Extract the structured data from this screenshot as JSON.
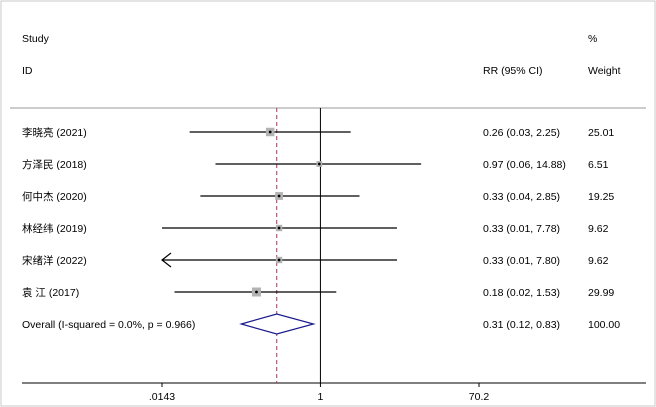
{
  "header": {
    "study_label": "Study",
    "id_label": "ID",
    "effect_label": "RR (95% CI)",
    "percent_label": "%",
    "weight_label": "Weight"
  },
  "chart_data": {
    "type": "forest",
    "scale": "log",
    "xlim": [
      0.0143,
      70.2
    ],
    "x_ticks": [
      {
        "value": 0.0143,
        "label": ".0143"
      },
      {
        "value": 1,
        "label": "1"
      },
      {
        "value": 70.2,
        "label": "70.2"
      }
    ],
    "null_line": 1,
    "pooled_reference_line": 0.31,
    "studies": [
      {
        "label": "李晓亮 (2021)",
        "rr": 0.26,
        "lo": 0.03,
        "hi": 2.25,
        "ci_text": "0.26 (0.03, 2.25)",
        "weight": "25.01",
        "weight_value": 25.01,
        "arrow_left": false
      },
      {
        "label": "方泽民 (2018)",
        "rr": 0.97,
        "lo": 0.06,
        "hi": 14.88,
        "ci_text": "0.97 (0.06, 14.88)",
        "weight": "6.51",
        "weight_value": 6.51,
        "arrow_left": false
      },
      {
        "label": "何中杰 (2020)",
        "rr": 0.33,
        "lo": 0.04,
        "hi": 2.85,
        "ci_text": "0.33 (0.04, 2.85)",
        "weight": "19.25",
        "weight_value": 19.25,
        "arrow_left": false
      },
      {
        "label": "林经纬 (2019)",
        "rr": 0.33,
        "lo": 0.01,
        "hi": 7.78,
        "ci_text": "0.33 (0.01, 7.78)",
        "weight": "9.62",
        "weight_value": 9.62,
        "arrow_left": false
      },
      {
        "label": "宋绪洋 (2022)",
        "rr": 0.33,
        "lo": 0.01,
        "hi": 7.8,
        "ci_text": "0.33 (0.01, 7.80)",
        "weight": "9.62",
        "weight_value": 9.62,
        "arrow_left": true
      },
      {
        "label": "袁 江 (2017)",
        "rr": 0.18,
        "lo": 0.02,
        "hi": 1.53,
        "ci_text": "0.18 (0.02, 1.53)",
        "weight": "29.99",
        "weight_value": 29.99,
        "arrow_left": false
      }
    ],
    "overall": {
      "label": "Overall  (I-squared = 0.0%, p = 0.966)",
      "rr": 0.31,
      "lo": 0.12,
      "hi": 0.83,
      "ci_text": "0.31 (0.12, 0.83)",
      "weight": "100.00"
    },
    "colors": {
      "diamond": "#1a1a8c",
      "box": "#b3b3b3",
      "reference_line": "#b03060",
      "line": "#000000"
    }
  }
}
